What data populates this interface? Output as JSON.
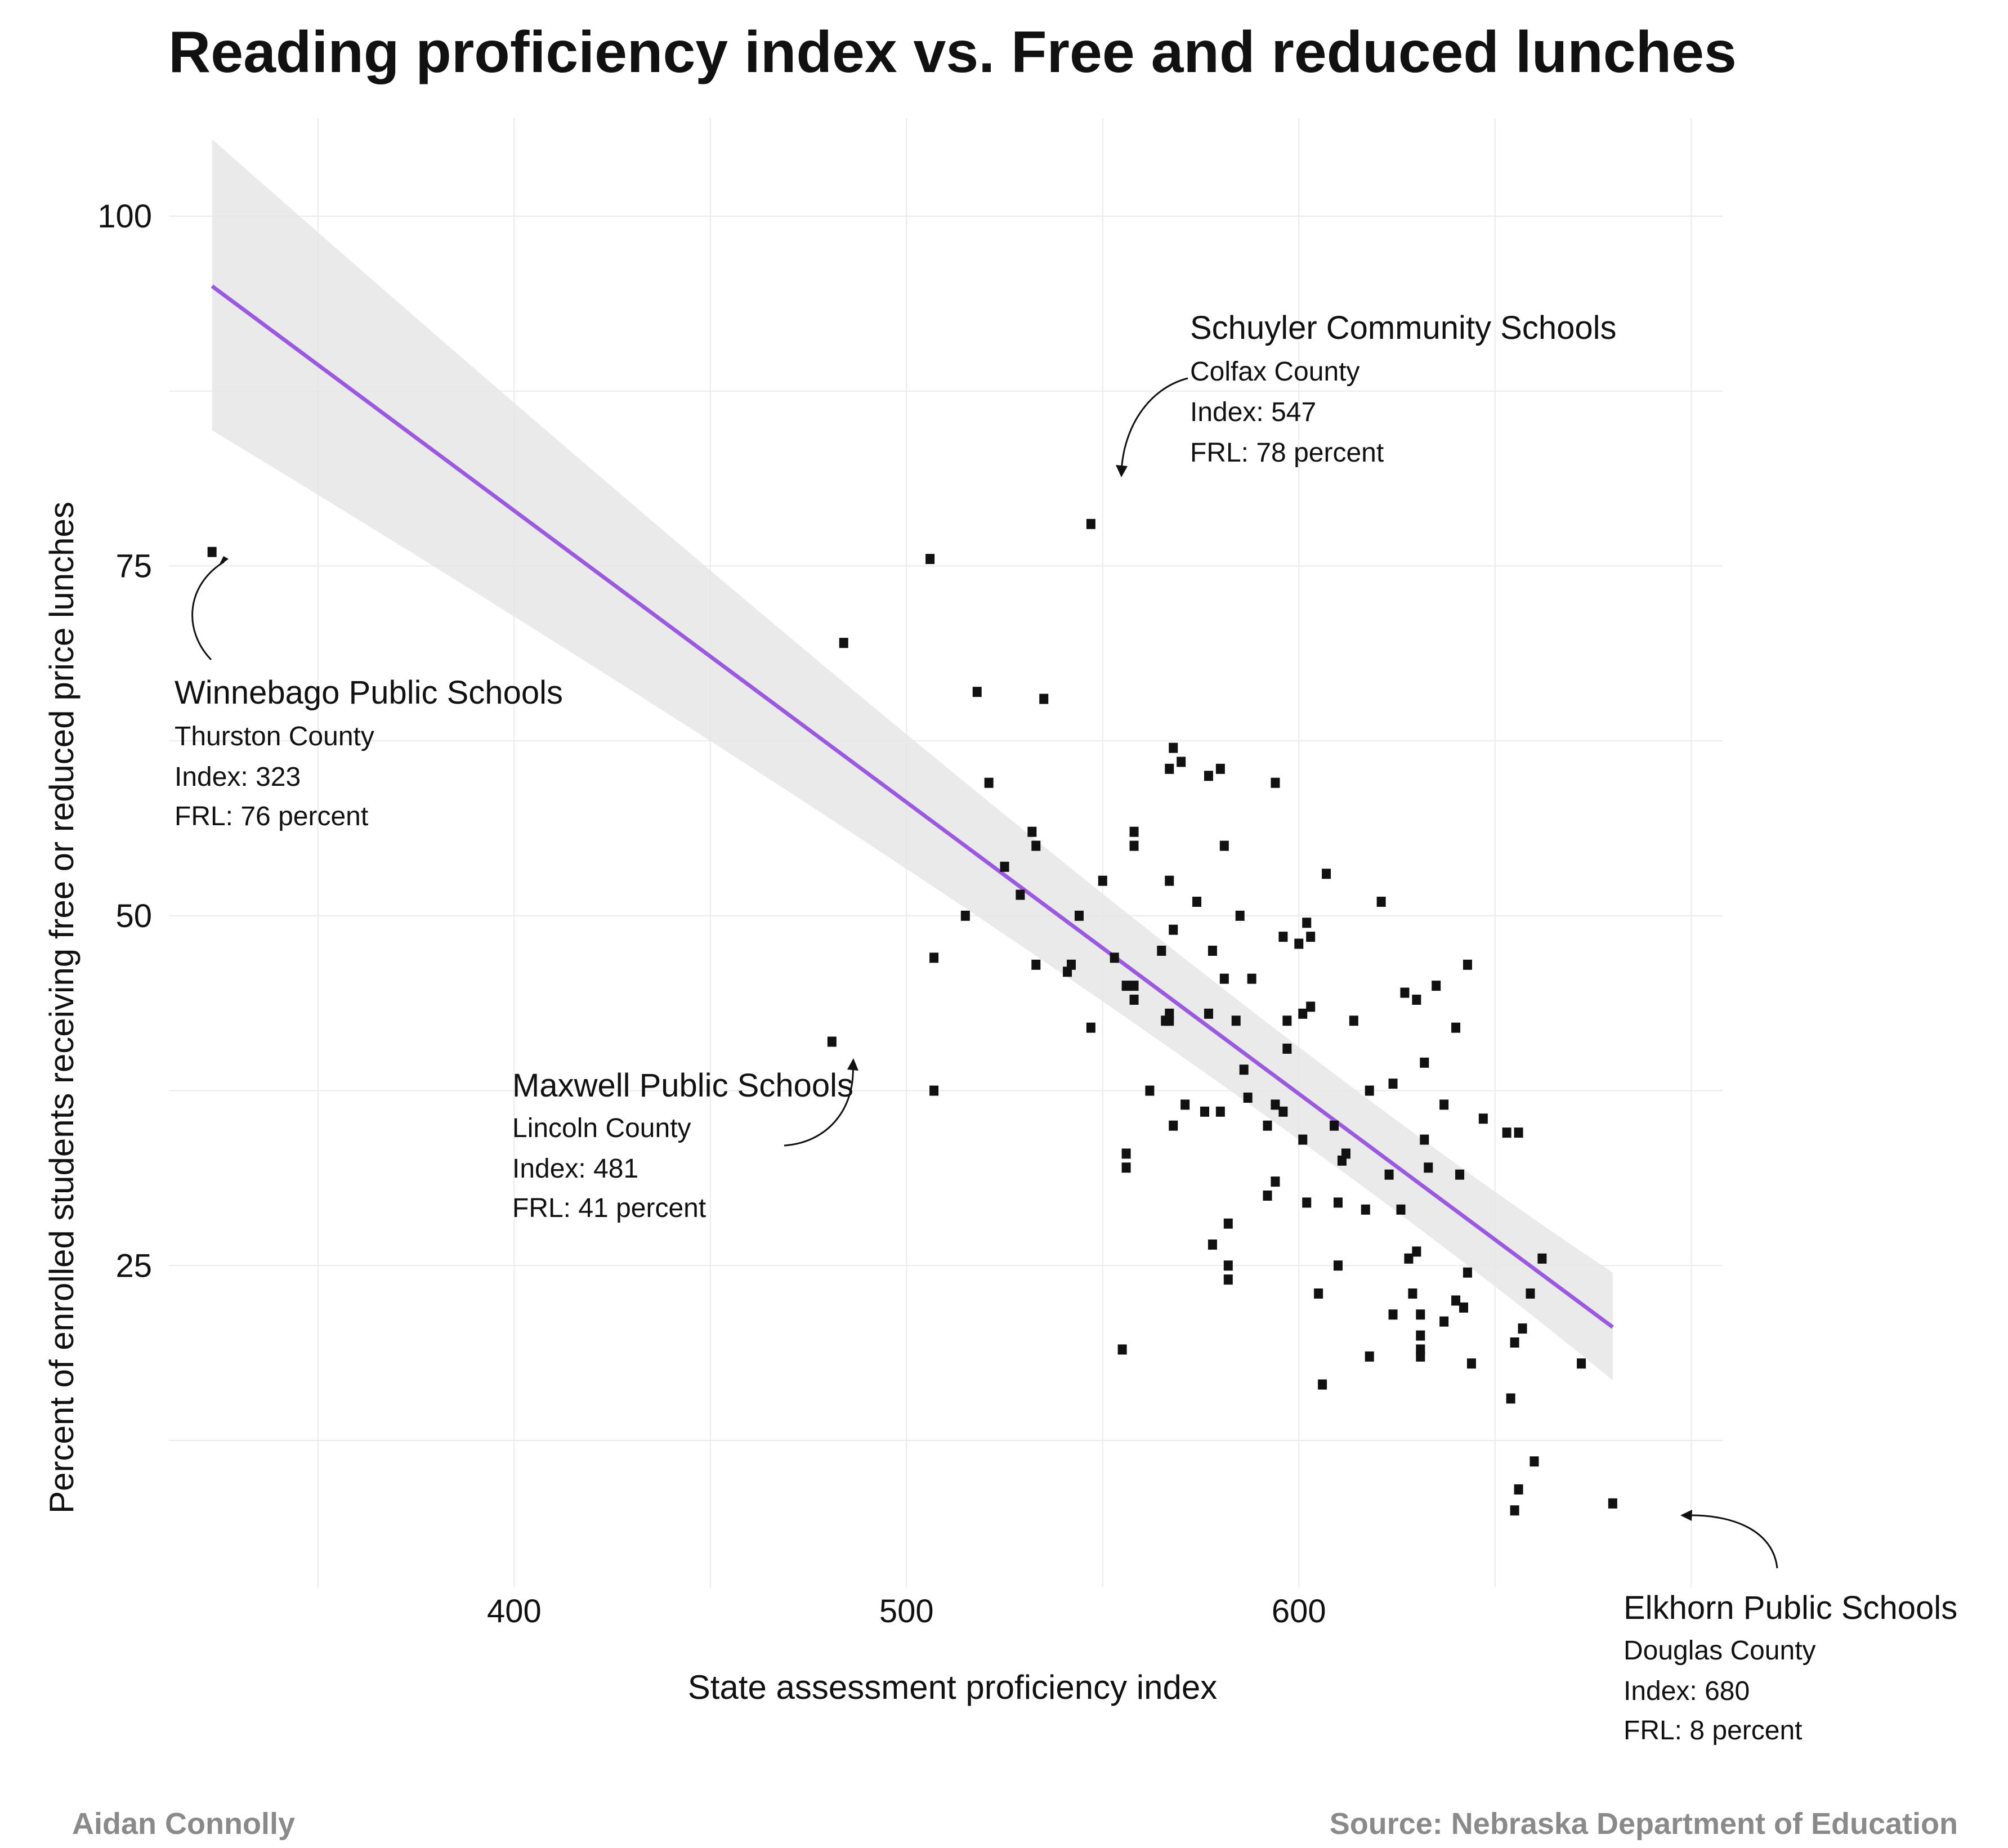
{
  "chart_data": {
    "type": "scatter",
    "title": "Reading proficiency index vs. Free and reduced lunches",
    "xlabel": "State assessment proficiency index",
    "ylabel": "Percent of enrolled students receiving free or reduced price lunches",
    "xlim": [
      312,
      708
    ],
    "ylim": [
      2,
      107
    ],
    "x_ticks": [
      400,
      500,
      600
    ],
    "y_ticks": [
      25,
      50,
      75,
      100
    ],
    "grid": true,
    "trend": {
      "x": [
        323,
        680
      ],
      "y": [
        95,
        20.6
      ],
      "band_upper": [
        105.5,
        24.5
      ],
      "band_lower": [
        84.7,
        16.8
      ],
      "color": "#9b59e0"
    },
    "points": [
      [
        323,
        76
      ],
      [
        547,
        78
      ],
      [
        481,
        41
      ],
      [
        680,
        8
      ],
      [
        484,
        69.5
      ],
      [
        506,
        75.5
      ],
      [
        507,
        47
      ],
      [
        507,
        37.5
      ],
      [
        515,
        50
      ],
      [
        518,
        66
      ],
      [
        521,
        59.5
      ],
      [
        525,
        53.5
      ],
      [
        529,
        51.5
      ],
      [
        532,
        56
      ],
      [
        533,
        55
      ],
      [
        533,
        46.5
      ],
      [
        535,
        65.5
      ],
      [
        541,
        46
      ],
      [
        542,
        46.5
      ],
      [
        544,
        50
      ],
      [
        547,
        42
      ],
      [
        550,
        52.5
      ],
      [
        553,
        47
      ],
      [
        555,
        19
      ],
      [
        556,
        45
      ],
      [
        556,
        33
      ],
      [
        556,
        32
      ],
      [
        558,
        56
      ],
      [
        558,
        55
      ],
      [
        558,
        45
      ],
      [
        558,
        44
      ],
      [
        562,
        37.5
      ],
      [
        565,
        47.5
      ],
      [
        566,
        42.5
      ],
      [
        567,
        60.5
      ],
      [
        567,
        52.5
      ],
      [
        567,
        43
      ],
      [
        567,
        42.5
      ],
      [
        568,
        49
      ],
      [
        568,
        35
      ],
      [
        568,
        62
      ],
      [
        570,
        61
      ],
      [
        571,
        36.5
      ],
      [
        574,
        51
      ],
      [
        576,
        36
      ],
      [
        577,
        60
      ],
      [
        577,
        43
      ],
      [
        578,
        26.5
      ],
      [
        578,
        47.5
      ],
      [
        580,
        60.5
      ],
      [
        580,
        36
      ],
      [
        581,
        55
      ],
      [
        581,
        45.5
      ],
      [
        582,
        28
      ],
      [
        582,
        25
      ],
      [
        582,
        24
      ],
      [
        584,
        42.5
      ],
      [
        585,
        50
      ],
      [
        586,
        39
      ],
      [
        587,
        37
      ],
      [
        588,
        45.5
      ],
      [
        592,
        30
      ],
      [
        592,
        35
      ],
      [
        594,
        36.5
      ],
      [
        594,
        31
      ],
      [
        594,
        59.5
      ],
      [
        596,
        48.5
      ],
      [
        596,
        36
      ],
      [
        597,
        40.5
      ],
      [
        597,
        42.5
      ],
      [
        600,
        48
      ],
      [
        601,
        43
      ],
      [
        601,
        34
      ],
      [
        602,
        29.5
      ],
      [
        602,
        49.5
      ],
      [
        603,
        43.5
      ],
      [
        603,
        48.5
      ],
      [
        605,
        23
      ],
      [
        606,
        16.5
      ],
      [
        607,
        53
      ],
      [
        609,
        35
      ],
      [
        610,
        29.5
      ],
      [
        610,
        25
      ],
      [
        611,
        32.5
      ],
      [
        612,
        33
      ],
      [
        614,
        42.5
      ],
      [
        617,
        29
      ],
      [
        618,
        18.5
      ],
      [
        618,
        37.5
      ],
      [
        621,
        51
      ],
      [
        623,
        31.5
      ],
      [
        624,
        38
      ],
      [
        624,
        21.5
      ],
      [
        626,
        29
      ],
      [
        627,
        44.5
      ],
      [
        628,
        25.5
      ],
      [
        629,
        23
      ],
      [
        630,
        44
      ],
      [
        630,
        26
      ],
      [
        631,
        21.5
      ],
      [
        631,
        18.5
      ],
      [
        631,
        19
      ],
      [
        631,
        20
      ],
      [
        632,
        34
      ],
      [
        632,
        39.5
      ],
      [
        633,
        32
      ],
      [
        635,
        45
      ],
      [
        637,
        36.5
      ],
      [
        637,
        21
      ],
      [
        640,
        42
      ],
      [
        640,
        22.5
      ],
      [
        641,
        31.5
      ],
      [
        642,
        22
      ],
      [
        643,
        46.5
      ],
      [
        643,
        24.5
      ],
      [
        644,
        18
      ],
      [
        647,
        35.5
      ],
      [
        653,
        34.5
      ],
      [
        654,
        15.5
      ],
      [
        655,
        19.5
      ],
      [
        655,
        7.5
      ],
      [
        656,
        34.5
      ],
      [
        656,
        9
      ],
      [
        657,
        20.5
      ],
      [
        659,
        23
      ],
      [
        660,
        11
      ],
      [
        662,
        25.5
      ],
      [
        672,
        18
      ]
    ],
    "annotations": [
      {
        "name": "Schuyler Community Schools",
        "county": "Colfax County",
        "index": "Index: 547",
        "frl": "FRL: 78 percent"
      },
      {
        "name": "Winnebago Public Schools",
        "county": "Thurston County",
        "index": "Index: 323",
        "frl": "FRL: 76 percent"
      },
      {
        "name": "Maxwell Public Schools",
        "county": "Lincoln County",
        "index": "Index: 481",
        "frl": "FRL: 41 percent"
      },
      {
        "name": "Elkhorn Public Schools",
        "county": "Douglas County",
        "index": "Index: 680",
        "frl": "FRL: 8 percent"
      }
    ]
  },
  "credits": {
    "author": "Aidan Connolly",
    "source": "Source: Nebraska Department of Education"
  }
}
